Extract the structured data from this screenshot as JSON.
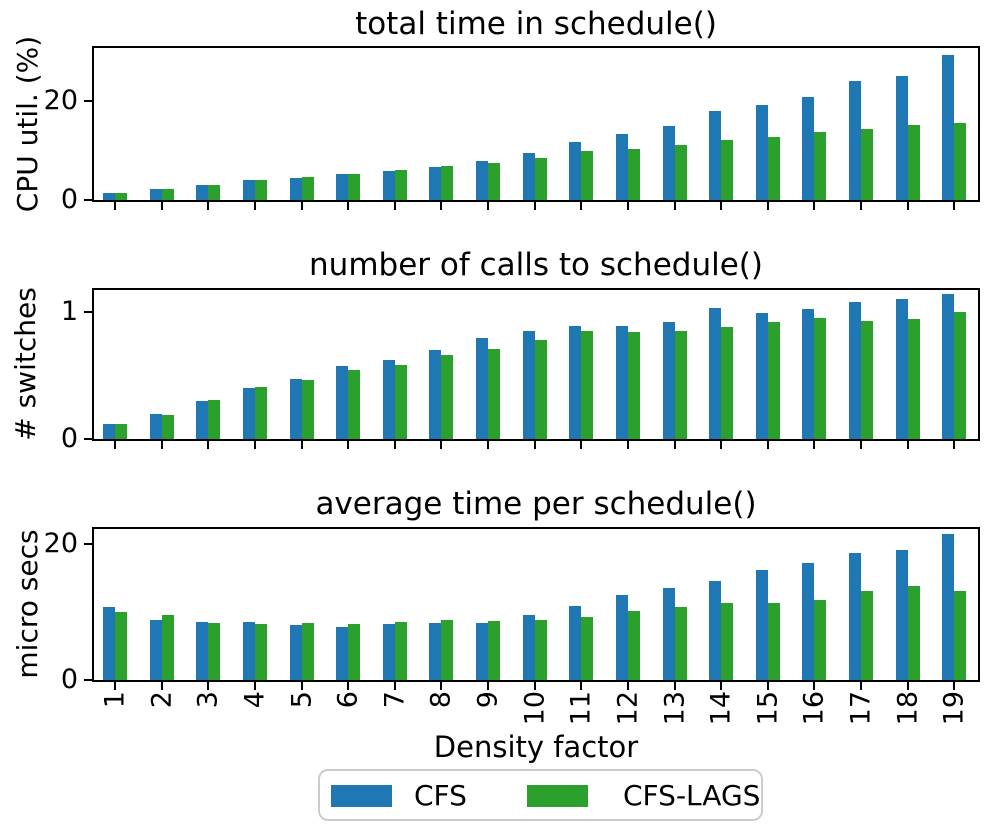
{
  "figure": {
    "background": "#ffffff"
  },
  "chart_data": {
    "type": "bar",
    "categories": [
      "1",
      "2",
      "3",
      "4",
      "5",
      "6",
      "7",
      "8",
      "9",
      "10",
      "11",
      "12",
      "13",
      "14",
      "15",
      "16",
      "17",
      "18",
      "19"
    ],
    "xlabel": "Density factor",
    "legend": {
      "position": "bottom-center",
      "items": [
        {
          "label": "CFS",
          "color": "#1f77b4"
        },
        {
          "label": "CFS-LAGS",
          "color": "#2ca02c"
        }
      ]
    },
    "layout_hints": {
      "grid": false,
      "bar_group": "pair",
      "xtick_rotation": 90
    },
    "charts": [
      {
        "title": "total time in schedule()",
        "ylabel": "CPU util. (%)",
        "ylim": [
          0,
          30.6
        ],
        "yticks": [
          {
            "v": 0,
            "label": "0"
          },
          {
            "v": 20,
            "label": "20"
          }
        ],
        "series": [
          {
            "name": "CFS",
            "color": "#1f77b4",
            "values": [
              1.5,
              2.2,
              3.1,
              4.0,
              4.4,
              5.2,
              5.9,
              6.7,
              7.8,
              9.4,
              11.6,
              13.3,
              15.0,
              17.9,
              19.1,
              20.7,
              23.9,
              25.0,
              29.3
            ]
          },
          {
            "name": "CFS-LAGS",
            "color": "#2ca02c",
            "values": [
              1.4,
              2.2,
              3.1,
              4.0,
              4.6,
              5.2,
              6.1,
              6.8,
              7.4,
              8.5,
              9.9,
              10.3,
              11.0,
              12.0,
              12.7,
              13.6,
              14.4,
              15.1,
              15.5
            ]
          }
        ]
      },
      {
        "title": "number of calls to schedule()",
        "ylabel": "# switches",
        "ylim": [
          0,
          1.17
        ],
        "yticks": [
          {
            "v": 0,
            "label": "0"
          },
          {
            "v": 1,
            "label": "1"
          }
        ],
        "series": [
          {
            "name": "CFS",
            "color": "#1f77b4",
            "values": [
              0.12,
              0.2,
              0.3,
              0.4,
              0.47,
              0.57,
              0.62,
              0.7,
              0.79,
              0.85,
              0.89,
              0.89,
              0.92,
              1.03,
              0.99,
              1.02,
              1.08,
              1.1,
              1.14
            ]
          },
          {
            "name": "CFS-LAGS",
            "color": "#2ca02c",
            "values": [
              0.12,
              0.19,
              0.31,
              0.41,
              0.46,
              0.54,
              0.58,
              0.66,
              0.71,
              0.78,
              0.85,
              0.84,
              0.85,
              0.88,
              0.92,
              0.95,
              0.93,
              0.94,
              1.0
            ]
          }
        ]
      },
      {
        "title": "average time per schedule()",
        "ylabel": "micro secs",
        "ylim": [
          0,
          22.2
        ],
        "yticks": [
          {
            "v": 0,
            "label": "0"
          },
          {
            "v": 20,
            "label": "20"
          }
        ],
        "series": [
          {
            "name": "CFS",
            "color": "#1f77b4",
            "values": [
              10.7,
              8.9,
              8.6,
              8.5,
              8.1,
              7.8,
              8.2,
              8.4,
              8.4,
              9.5,
              10.9,
              12.5,
              13.5,
              14.6,
              16.2,
              17.2,
              18.7,
              19.1,
              21.5
            ]
          },
          {
            "name": "CFS-LAGS",
            "color": "#2ca02c",
            "values": [
              10.0,
              9.6,
              8.4,
              8.3,
              8.4,
              8.2,
              8.6,
              8.8,
              8.7,
              8.9,
              9.2,
              10.2,
              10.7,
              11.3,
              11.3,
              11.7,
              13.1,
              13.8,
              13.1
            ]
          }
        ]
      }
    ]
  }
}
